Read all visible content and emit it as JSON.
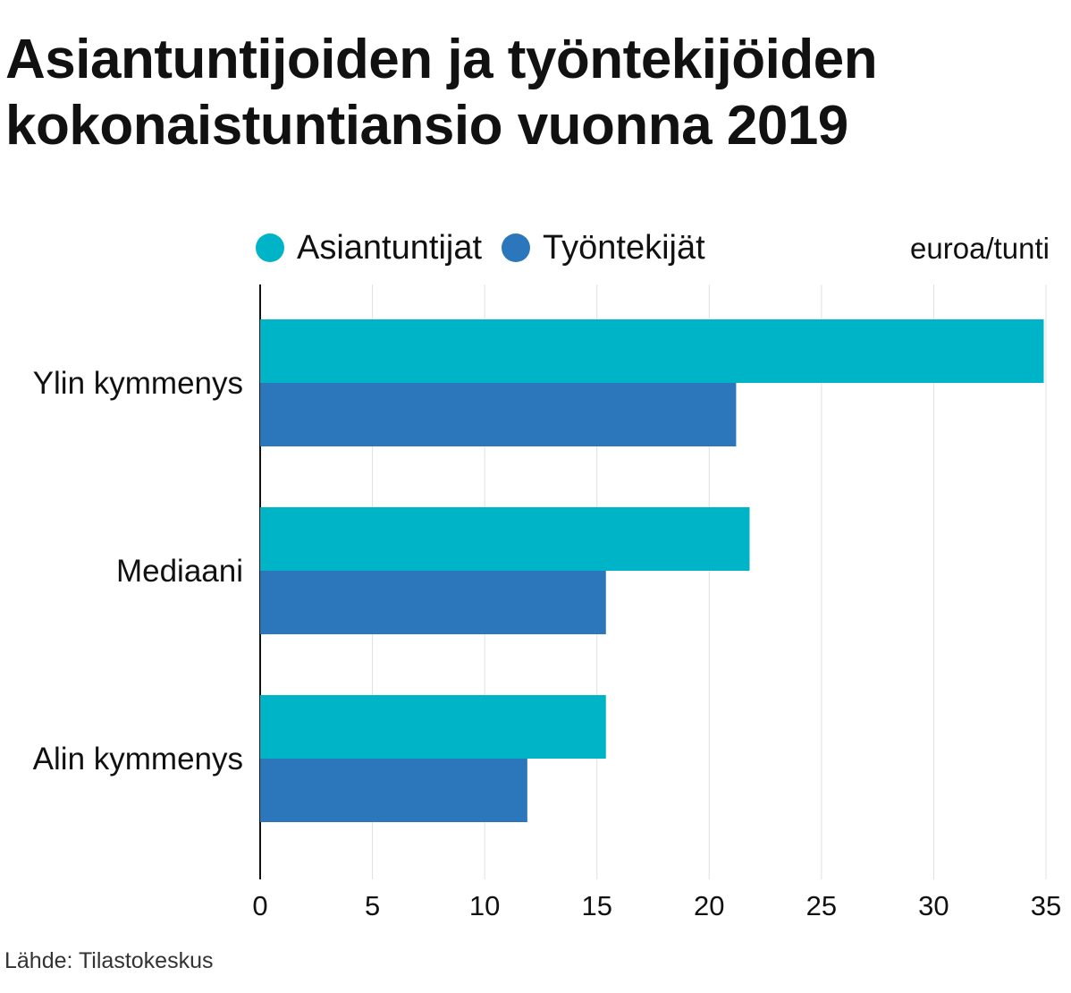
{
  "title": "Asiantuntijoiden ja työntekijöiden kokonaistuntiansio vuonna 2019",
  "unit_label": "euroa/tunti",
  "source": "Lähde: Tilastokeskus",
  "colors": {
    "Asiantuntijat": "#00b4c8",
    "Työntekijät": "#2c77bb",
    "grid": "#e0e0e0",
    "axis": "#111111"
  },
  "chart_data": {
    "type": "bar",
    "orientation": "horizontal",
    "title": "Asiantuntijoiden ja työntekijöiden kokonaistuntiansio vuonna 2019",
    "xlabel": "euroa/tunti",
    "ylabel": "",
    "categories": [
      "Ylin kymmenys",
      "Mediaani",
      "Alin kymmenys"
    ],
    "series": [
      {
        "name": "Asiantuntijat",
        "values": [
          34.9,
          21.8,
          15.4
        ]
      },
      {
        "name": "Työntekijät",
        "values": [
          21.2,
          15.4,
          11.9
        ]
      }
    ],
    "xlim": [
      0,
      35
    ],
    "xticks": [
      "0",
      "5",
      "10",
      "15",
      "20",
      "25",
      "30",
      "35"
    ],
    "grid": true,
    "legend_position": "top"
  }
}
